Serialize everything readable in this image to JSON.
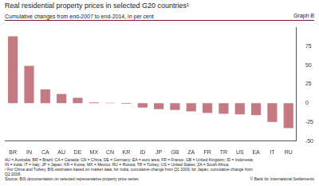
{
  "chart_data": {
    "type": "bar",
    "title": "Real residential property prices in selected G20 countries¹",
    "subtitle": "Cumulative changes from end-2007 to end-2014, in per cent",
    "categories": [
      "BR",
      "IN",
      "CA",
      "AU",
      "DE",
      "MX",
      "CN",
      "KR",
      "ID",
      "JP",
      "GB",
      "ZA",
      "FR",
      "TR",
      "US",
      "EA",
      "IT",
      "RU"
    ],
    "values": [
      88,
      49,
      18,
      12,
      7,
      1,
      0.5,
      -1,
      -6,
      -8,
      -9,
      -11,
      -13,
      -14,
      -15,
      -16,
      -25,
      -33
    ],
    "color": "#c47a83",
    "ylim": [
      -50,
      100
    ],
    "yticks": [
      -50,
      -25,
      0,
      25,
      50,
      75
    ],
    "grid": false
  },
  "graph_label": "Graph B",
  "notes": [
    "AU = Australia; BR = Brazil; CA = Canada; CN = China; DE = Germany; EA = euro area; FR = France; GB = United Kingdom; ID = Indonesia;",
    "IN = India; IT = Italy; JP = Japan; KR = Korea; MX = Mexico; RU = Russia; TR = Turkey; US = United States; ZA = South Africa.",
    "¹ For China and Turkey, BIS estimates based on market data; for India, cumulative change from Q1 2009; for Japan, cumulative change from",
    "Q2 2008."
  ],
  "source": "Source: BIS documentation on selected representative property price series.",
  "copyright": "© Bank for International Settlements"
}
